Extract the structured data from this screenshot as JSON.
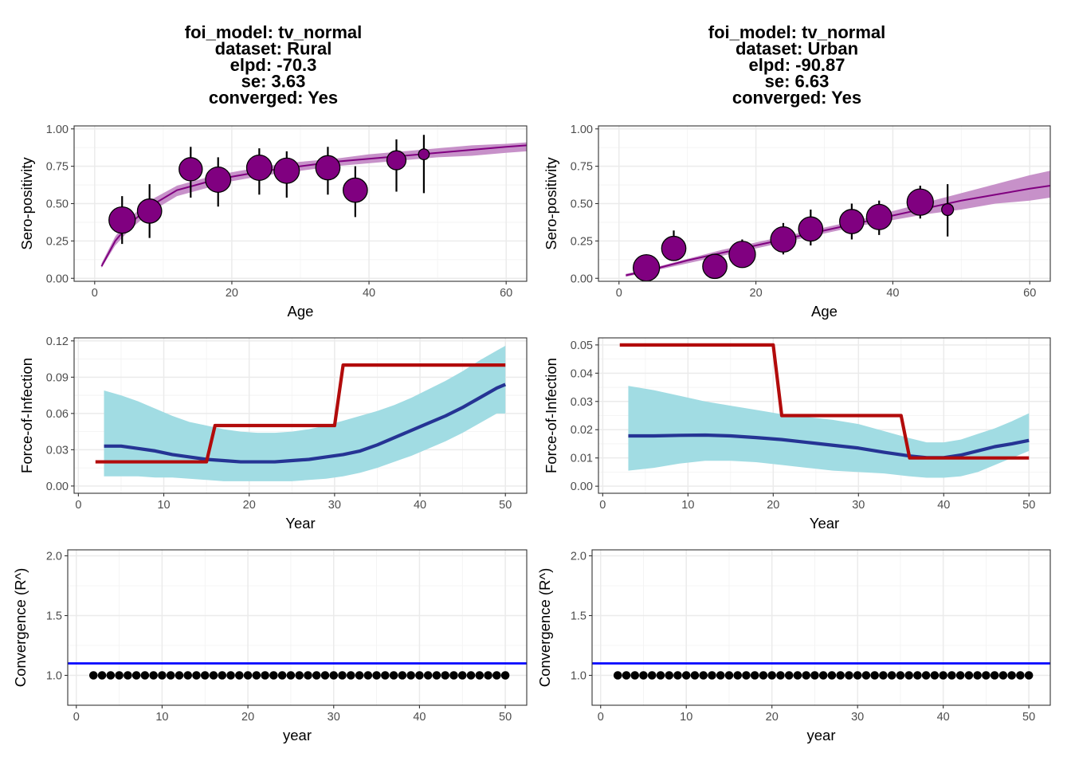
{
  "colors": {
    "seroprev_point": "#800080",
    "seroprev_band": "#c48bc6",
    "foi_band": "#a1dce3",
    "foi_fit": "#253494",
    "foi_true": "#b20b0b",
    "rhat_threshold": "#0000ff",
    "rhat_points": "#000000"
  },
  "columns": [
    {
      "title_lines": [
        "foi_model: tv_normal",
        "dataset: Rural",
        "elpd: -70.3",
        "se: 3.63",
        "converged: Yes"
      ]
    },
    {
      "title_lines": [
        "foi_model: tv_normal",
        "dataset: Urban",
        "elpd: -90.87",
        "se: 6.63",
        "converged: Yes"
      ]
    }
  ],
  "chart_data": [
    {
      "type": "scatter",
      "panel": "Rural seroprevalence",
      "xlabel": "Age",
      "ylabel": "Sero-positivity",
      "xlim": [
        -3,
        63
      ],
      "ylim": [
        -0.02,
        1.02
      ],
      "xticks": [
        0,
        20,
        40,
        60
      ],
      "yticks": [
        0.0,
        0.25,
        0.5,
        0.75,
        1.0
      ],
      "xtick_labels": [
        "0",
        "20",
        "40",
        "60"
      ],
      "ytick_labels": [
        "0.00",
        "0.25",
        "0.50",
        "0.75",
        "1.00"
      ],
      "grid": true,
      "points": [
        {
          "x": 4,
          "y": 0.39,
          "lo": 0.23,
          "hi": 0.55,
          "size": 1.0
        },
        {
          "x": 8,
          "y": 0.45,
          "lo": 0.27,
          "hi": 0.63,
          "size": 0.9
        },
        {
          "x": 14,
          "y": 0.73,
          "lo": 0.54,
          "hi": 0.88,
          "size": 0.85
        },
        {
          "x": 18,
          "y": 0.66,
          "lo": 0.48,
          "hi": 0.81,
          "size": 0.95
        },
        {
          "x": 24,
          "y": 0.74,
          "lo": 0.56,
          "hi": 0.87,
          "size": 0.95
        },
        {
          "x": 28,
          "y": 0.72,
          "lo": 0.54,
          "hi": 0.85,
          "size": 0.95
        },
        {
          "x": 34,
          "y": 0.74,
          "lo": 0.56,
          "hi": 0.88,
          "size": 0.9
        },
        {
          "x": 38,
          "y": 0.59,
          "lo": 0.41,
          "hi": 0.75,
          "size": 0.9
        },
        {
          "x": 44,
          "y": 0.79,
          "lo": 0.58,
          "hi": 0.93,
          "size": 0.65
        },
        {
          "x": 48,
          "y": 0.83,
          "lo": 0.57,
          "hi": 0.96,
          "size": 0.25
        }
      ],
      "fit_x": [
        1,
        3,
        5,
        8,
        12,
        16,
        20,
        25,
        30,
        35,
        40,
        45,
        50,
        55,
        60,
        63
      ],
      "fit": [
        0.08,
        0.25,
        0.36,
        0.48,
        0.59,
        0.64,
        0.68,
        0.72,
        0.75,
        0.78,
        0.8,
        0.82,
        0.84,
        0.86,
        0.88,
        0.89
      ],
      "fit_lo": [
        0.07,
        0.22,
        0.32,
        0.44,
        0.55,
        0.6,
        0.65,
        0.69,
        0.72,
        0.75,
        0.77,
        0.79,
        0.81,
        0.82,
        0.84,
        0.85
      ],
      "fit_hi": [
        0.1,
        0.28,
        0.4,
        0.52,
        0.62,
        0.67,
        0.71,
        0.75,
        0.78,
        0.8,
        0.83,
        0.85,
        0.87,
        0.89,
        0.9,
        0.91
      ]
    },
    {
      "type": "scatter",
      "panel": "Urban seroprevalence",
      "xlabel": "Age",
      "ylabel": "Sero-positivity",
      "xlim": [
        -3,
        63
      ],
      "ylim": [
        -0.02,
        1.02
      ],
      "xticks": [
        0,
        20,
        40,
        60
      ],
      "yticks": [
        0.0,
        0.25,
        0.5,
        0.75,
        1.0
      ],
      "xtick_labels": [
        "0",
        "20",
        "40",
        "60"
      ],
      "ytick_labels": [
        "0.00",
        "0.25",
        "0.50",
        "0.75",
        "1.00"
      ],
      "grid": true,
      "points": [
        {
          "x": 4,
          "y": 0.07,
          "lo": 0.02,
          "hi": 0.12,
          "size": 1.0
        },
        {
          "x": 8,
          "y": 0.2,
          "lo": 0.12,
          "hi": 0.32,
          "size": 0.9
        },
        {
          "x": 14,
          "y": 0.08,
          "lo": 0.03,
          "hi": 0.14,
          "size": 0.9
        },
        {
          "x": 18,
          "y": 0.16,
          "lo": 0.08,
          "hi": 0.26,
          "size": 1.0
        },
        {
          "x": 24,
          "y": 0.26,
          "lo": 0.16,
          "hi": 0.37,
          "size": 0.95
        },
        {
          "x": 28,
          "y": 0.33,
          "lo": 0.22,
          "hi": 0.46,
          "size": 0.9
        },
        {
          "x": 34,
          "y": 0.38,
          "lo": 0.26,
          "hi": 0.5,
          "size": 0.9
        },
        {
          "x": 38,
          "y": 0.41,
          "lo": 0.29,
          "hi": 0.52,
          "size": 0.95
        },
        {
          "x": 44,
          "y": 0.51,
          "lo": 0.4,
          "hi": 0.62,
          "size": 1.0
        },
        {
          "x": 48,
          "y": 0.46,
          "lo": 0.28,
          "hi": 0.63,
          "size": 0.3
        }
      ],
      "fit_x": [
        1,
        5,
        10,
        15,
        20,
        25,
        30,
        35,
        40,
        45,
        50,
        55,
        60,
        63
      ],
      "fit": [
        0.02,
        0.06,
        0.12,
        0.17,
        0.22,
        0.27,
        0.32,
        0.37,
        0.42,
        0.47,
        0.52,
        0.56,
        0.6,
        0.62
      ],
      "fit_lo": [
        0.01,
        0.05,
        0.1,
        0.15,
        0.2,
        0.25,
        0.3,
        0.35,
        0.39,
        0.43,
        0.46,
        0.5,
        0.52,
        0.54
      ],
      "fit_hi": [
        0.03,
        0.07,
        0.13,
        0.19,
        0.24,
        0.29,
        0.34,
        0.39,
        0.45,
        0.51,
        0.57,
        0.63,
        0.69,
        0.72
      ]
    },
    {
      "type": "line",
      "panel": "Rural force-of-infection",
      "xlabel": "Year",
      "ylabel": "Force-of-Infection",
      "xlim": [
        -0.5,
        52.5
      ],
      "ylim": [
        -0.006,
        0.1225
      ],
      "xticks": [
        0,
        10,
        20,
        30,
        40,
        50
      ],
      "yticks": [
        0,
        0.03,
        0.06,
        0.09,
        0.12
      ],
      "xtick_labels": [
        "0",
        "10",
        "20",
        "30",
        "40",
        "50"
      ],
      "ytick_labels": [
        "0.00",
        "0.03",
        "0.06",
        "0.09",
        "0.12"
      ],
      "grid": true,
      "x": [
        3,
        5,
        7,
        9,
        11,
        13,
        15,
        17,
        19,
        21,
        23,
        25,
        27,
        29,
        31,
        33,
        35,
        37,
        39,
        41,
        43,
        45,
        47,
        49,
        50
      ],
      "fit": [
        0.033,
        0.033,
        0.031,
        0.029,
        0.026,
        0.024,
        0.022,
        0.021,
        0.02,
        0.02,
        0.02,
        0.021,
        0.022,
        0.024,
        0.026,
        0.029,
        0.034,
        0.04,
        0.046,
        0.052,
        0.058,
        0.065,
        0.073,
        0.081,
        0.084
      ],
      "lower": [
        0.008,
        0.008,
        0.008,
        0.007,
        0.007,
        0.006,
        0.005,
        0.004,
        0.004,
        0.004,
        0.004,
        0.004,
        0.005,
        0.006,
        0.008,
        0.011,
        0.015,
        0.02,
        0.025,
        0.031,
        0.037,
        0.044,
        0.052,
        0.06,
        0.06
      ],
      "upper": [
        0.079,
        0.075,
        0.07,
        0.064,
        0.058,
        0.053,
        0.05,
        0.047,
        0.045,
        0.044,
        0.044,
        0.045,
        0.047,
        0.05,
        0.054,
        0.058,
        0.062,
        0.067,
        0.073,
        0.08,
        0.087,
        0.095,
        0.104,
        0.112,
        0.116
      ],
      "true_x": [
        2,
        15,
        16,
        30,
        31,
        50
      ],
      "true_y": [
        0.02,
        0.02,
        0.05,
        0.05,
        0.1,
        0.1
      ]
    },
    {
      "type": "line",
      "panel": "Urban force-of-infection",
      "xlabel": "Year",
      "ylabel": "Force-of-Infection",
      "xlim": [
        -0.5,
        52.5
      ],
      "ylim": [
        -0.0025,
        0.0525
      ],
      "xticks": [
        0,
        10,
        20,
        30,
        40,
        50
      ],
      "yticks": [
        0,
        0.01,
        0.02,
        0.03,
        0.04,
        0.05
      ],
      "xtick_labels": [
        "0",
        "10",
        "20",
        "30",
        "40",
        "50"
      ],
      "ytick_labels": [
        "0.00",
        "0.01",
        "0.02",
        "0.03",
        "0.04",
        "0.05"
      ],
      "grid": true,
      "x": [
        3,
        6,
        9,
        12,
        15,
        18,
        21,
        24,
        27,
        30,
        33,
        36,
        38,
        40,
        42,
        44,
        46,
        48,
        50
      ],
      "fit": [
        0.0178,
        0.0178,
        0.018,
        0.0181,
        0.0178,
        0.0172,
        0.0165,
        0.0155,
        0.0145,
        0.0135,
        0.012,
        0.0107,
        0.0101,
        0.0101,
        0.011,
        0.0125,
        0.014,
        0.015,
        0.0162
      ],
      "lower": [
        0.0055,
        0.0065,
        0.008,
        0.009,
        0.009,
        0.0085,
        0.0075,
        0.0065,
        0.0055,
        0.005,
        0.0045,
        0.0035,
        0.003,
        0.003,
        0.0035,
        0.005,
        0.0075,
        0.01,
        0.0125
      ],
      "upper": [
        0.0355,
        0.034,
        0.032,
        0.03,
        0.0285,
        0.027,
        0.0255,
        0.0245,
        0.0235,
        0.022,
        0.0195,
        0.017,
        0.0155,
        0.0155,
        0.0165,
        0.0185,
        0.0205,
        0.023,
        0.0258
      ],
      "true_x": [
        2,
        20,
        21,
        35,
        36,
        50
      ],
      "true_y": [
        0.05,
        0.05,
        0.025,
        0.025,
        0.01,
        0.01
      ]
    },
    {
      "type": "scatter",
      "panel": "Rural convergence",
      "xlabel": "year",
      "ylabel": "Convergence (R^)",
      "xlim": [
        -1.0,
        52.5
      ],
      "ylim": [
        0.75,
        2.05
      ],
      "xticks": [
        0,
        10,
        20,
        30,
        40,
        50
      ],
      "yticks": [
        1.0,
        1.5,
        2.0
      ],
      "xtick_labels": [
        "0",
        "10",
        "20",
        "30",
        "40",
        "50"
      ],
      "ytick_labels": [
        "1.0",
        "1.5",
        "2.0"
      ],
      "grid": true,
      "threshold": 1.1,
      "x_start": 2,
      "x_end": 50,
      "rhat": [
        1.0,
        1.0,
        1.0,
        1.0,
        1.0,
        1.0,
        1.0,
        1.0,
        1.0,
        1.0,
        1.0,
        1.0,
        1.0,
        1.0,
        1.0,
        1.0,
        1.0,
        1.0,
        1.0,
        1.0,
        1.0,
        1.0,
        1.0,
        1.0,
        1.0,
        1.0,
        1.0,
        1.0,
        1.0,
        1.0,
        1.0,
        1.0,
        1.0,
        1.0,
        1.0,
        1.0,
        1.0,
        1.0,
        1.0,
        1.0,
        1.0,
        1.0,
        1.0,
        1.0,
        1.0,
        1.0,
        1.0,
        1.0,
        1.0
      ]
    },
    {
      "type": "scatter",
      "panel": "Urban convergence",
      "xlabel": "year",
      "ylabel": "Convergence (R^)",
      "xlim": [
        -1.0,
        52.5
      ],
      "ylim": [
        0.75,
        2.05
      ],
      "xticks": [
        0,
        10,
        20,
        30,
        40,
        50
      ],
      "yticks": [
        1.0,
        1.5,
        2.0
      ],
      "xtick_labels": [
        "0",
        "10",
        "20",
        "30",
        "40",
        "50"
      ],
      "ytick_labels": [
        "1.0",
        "1.5",
        "2.0"
      ],
      "grid": true,
      "threshold": 1.1,
      "x_start": 2,
      "x_end": 50,
      "rhat": [
        1.0,
        1.0,
        1.0,
        1.0,
        1.0,
        1.0,
        1.0,
        1.0,
        1.0,
        1.0,
        1.0,
        1.0,
        1.0,
        1.0,
        1.0,
        1.0,
        1.0,
        1.0,
        1.0,
        1.0,
        1.0,
        1.0,
        1.0,
        1.0,
        1.0,
        1.0,
        1.0,
        1.0,
        1.0,
        1.0,
        1.0,
        1.0,
        1.0,
        1.0,
        1.0,
        1.0,
        1.0,
        1.0,
        1.0,
        1.0,
        1.0,
        1.0,
        1.0,
        1.0,
        1.0,
        1.0,
        1.0,
        1.0,
        1.0
      ]
    }
  ]
}
